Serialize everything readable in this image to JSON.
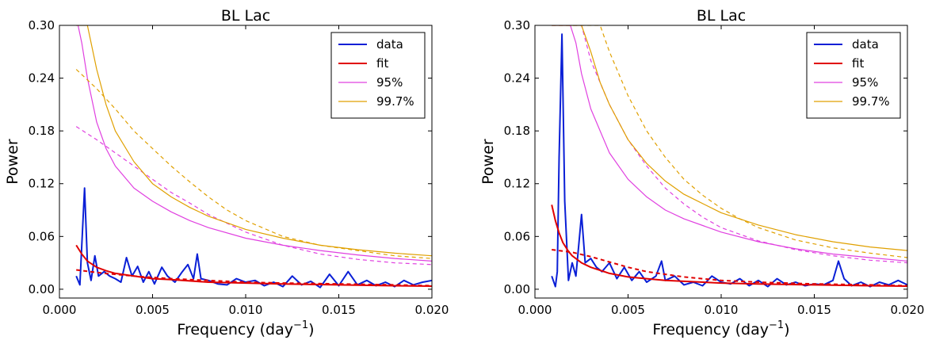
{
  "chart_data": [
    {
      "type": "line",
      "title": "BL Lac",
      "xlabel": "Frequency (day",
      "xlabel_sup": "−1",
      "xlabel_close": ")",
      "ylabel": "Power",
      "xlim": [
        0.0,
        0.02
      ],
      "ylim": [
        -0.01,
        0.3
      ],
      "xticks": [
        0.0,
        0.005,
        0.01,
        0.015,
        0.02
      ],
      "xtick_labels": [
        "0.000",
        "0.005",
        "0.010",
        "0.015",
        "0.020"
      ],
      "yticks": [
        0.0,
        0.06,
        0.12,
        0.18,
        0.24,
        0.3
      ],
      "ytick_labels": [
        "0.00",
        "0.06",
        "0.12",
        "0.18",
        "0.24",
        "0.30"
      ],
      "legend": {
        "position": "top-right",
        "entries": [
          {
            "label": "data",
            "color": "#0a1fd6"
          },
          {
            "label": "fit",
            "color": "#e00000"
          },
          {
            "label": "95%",
            "color": "#e040e0"
          },
          {
            "label": "99.7%",
            "color": "#e0a000"
          }
        ]
      },
      "series": [
        {
          "name": "data",
          "color": "#0a1fd6",
          "x": [
            0.0009,
            0.0011,
            0.0012,
            0.00135,
            0.0015,
            0.0017,
            0.0019,
            0.0021,
            0.0024,
            0.0027,
            0.003,
            0.0033,
            0.0036,
            0.0039,
            0.0042,
            0.0045,
            0.0048,
            0.0051,
            0.0055,
            0.0058,
            0.0062,
            0.0066,
            0.0069,
            0.0072,
            0.0074,
            0.0076,
            0.008,
            0.0085,
            0.009,
            0.0095,
            0.01,
            0.0105,
            0.011,
            0.0115,
            0.012,
            0.0125,
            0.013,
            0.0135,
            0.014,
            0.0145,
            0.015,
            0.0155,
            0.016,
            0.0165,
            0.017,
            0.0175,
            0.018,
            0.0185,
            0.019,
            0.0195,
            0.02
          ],
          "y": [
            0.015,
            0.005,
            0.05,
            0.115,
            0.03,
            0.01,
            0.038,
            0.015,
            0.02,
            0.015,
            0.012,
            0.008,
            0.036,
            0.015,
            0.026,
            0.008,
            0.02,
            0.006,
            0.025,
            0.015,
            0.008,
            0.02,
            0.028,
            0.012,
            0.04,
            0.012,
            0.01,
            0.006,
            0.005,
            0.012,
            0.008,
            0.01,
            0.004,
            0.008,
            0.003,
            0.015,
            0.005,
            0.009,
            0.002,
            0.017,
            0.004,
            0.02,
            0.005,
            0.01,
            0.004,
            0.008,
            0.003,
            0.01,
            0.005,
            0.008,
            0.01
          ]
        },
        {
          "name": "fit",
          "style": "solid",
          "color": "#e00000",
          "x": [
            0.0009,
            0.0012,
            0.0015,
            0.002,
            0.0025,
            0.003,
            0.004,
            0.005,
            0.006,
            0.008,
            0.01,
            0.012,
            0.015,
            0.018,
            0.02
          ],
          "y": [
            0.05,
            0.04,
            0.032,
            0.025,
            0.021,
            0.018,
            0.015,
            0.012,
            0.011,
            0.008,
            0.007,
            0.006,
            0.005,
            0.004,
            0.0035
          ]
        },
        {
          "name": "fit (dashed)",
          "style": "dashed",
          "color": "#e00000",
          "x": [
            0.0009,
            0.002,
            0.004,
            0.006,
            0.008,
            0.01,
            0.012,
            0.015,
            0.018,
            0.02
          ],
          "y": [
            0.022,
            0.019,
            0.015,
            0.012,
            0.01,
            0.008,
            0.007,
            0.006,
            0.005,
            0.004
          ]
        },
        {
          "name": "95%",
          "style": "solid",
          "color": "#e040e0",
          "x": [
            0.0009,
            0.001,
            0.0012,
            0.0015,
            0.002,
            0.0025,
            0.003,
            0.004,
            0.005,
            0.006,
            0.007,
            0.008,
            0.01,
            0.012,
            0.014,
            0.016,
            0.018,
            0.02
          ],
          "y": [
            0.3,
            0.3,
            0.28,
            0.24,
            0.19,
            0.16,
            0.14,
            0.115,
            0.1,
            0.088,
            0.078,
            0.07,
            0.058,
            0.05,
            0.044,
            0.039,
            0.035,
            0.032
          ]
        },
        {
          "name": "95% (dashed)",
          "style": "dashed",
          "color": "#e040e0",
          "x": [
            0.0009,
            0.002,
            0.003,
            0.004,
            0.005,
            0.006,
            0.007,
            0.008,
            0.009,
            0.01,
            0.012,
            0.014,
            0.016,
            0.018,
            0.02
          ],
          "y": [
            0.185,
            0.17,
            0.155,
            0.14,
            0.125,
            0.11,
            0.098,
            0.085,
            0.075,
            0.065,
            0.05,
            0.04,
            0.034,
            0.03,
            0.028
          ]
        },
        {
          "name": "99.7%",
          "style": "solid",
          "color": "#e0a000",
          "x": [
            0.0009,
            0.0015,
            0.002,
            0.0025,
            0.003,
            0.004,
            0.005,
            0.006,
            0.007,
            0.008,
            0.01,
            0.012,
            0.014,
            0.016,
            0.018,
            0.02
          ],
          "y": [
            0.3,
            0.3,
            0.25,
            0.21,
            0.18,
            0.145,
            0.12,
            0.105,
            0.093,
            0.083,
            0.068,
            0.058,
            0.05,
            0.045,
            0.041,
            0.038
          ]
        },
        {
          "name": "99.7% (dashed)",
          "style": "dashed",
          "color": "#e0a000",
          "x": [
            0.0009,
            0.002,
            0.003,
            0.004,
            0.005,
            0.006,
            0.007,
            0.008,
            0.009,
            0.01,
            0.012,
            0.014,
            0.016,
            0.018,
            0.02
          ],
          "y": [
            0.25,
            0.228,
            0.205,
            0.18,
            0.16,
            0.14,
            0.122,
            0.105,
            0.09,
            0.078,
            0.06,
            0.05,
            0.044,
            0.038,
            0.035
          ]
        }
      ]
    },
    {
      "type": "line",
      "title": "BL Lac",
      "xlabel": "Frequency (day",
      "xlabel_sup": "−1",
      "xlabel_close": ")",
      "ylabel": "Power",
      "xlim": [
        0.0,
        0.02
      ],
      "ylim": [
        -0.01,
        0.3
      ],
      "xticks": [
        0.0,
        0.005,
        0.01,
        0.015,
        0.02
      ],
      "xtick_labels": [
        "0.000",
        "0.005",
        "0.010",
        "0.015",
        "0.020"
      ],
      "yticks": [
        0.0,
        0.06,
        0.12,
        0.18,
        0.24,
        0.3
      ],
      "ytick_labels": [
        "0.00",
        "0.06",
        "0.12",
        "0.18",
        "0.24",
        "0.30"
      ],
      "legend": {
        "position": "top-right",
        "entries": [
          {
            "label": "data",
            "color": "#0a1fd6"
          },
          {
            "label": "fit",
            "color": "#e00000"
          },
          {
            "label": "95%",
            "color": "#e040e0"
          },
          {
            "label": "99.7%",
            "color": "#e0a000"
          }
        ]
      },
      "series": [
        {
          "name": "data",
          "color": "#0a1fd6",
          "x": [
            0.0009,
            0.0011,
            0.0012,
            0.0013,
            0.00145,
            0.0016,
            0.0018,
            0.002,
            0.0022,
            0.0025,
            0.0027,
            0.003,
            0.0033,
            0.0036,
            0.004,
            0.0044,
            0.0048,
            0.0052,
            0.0056,
            0.006,
            0.0065,
            0.0068,
            0.007,
            0.0075,
            0.008,
            0.0085,
            0.009,
            0.0095,
            0.01,
            0.0105,
            0.011,
            0.0115,
            0.012,
            0.0125,
            0.013,
            0.0135,
            0.014,
            0.0145,
            0.015,
            0.0155,
            0.016,
            0.0163,
            0.0166,
            0.017,
            0.0175,
            0.018,
            0.0185,
            0.019,
            0.0195,
            0.02
          ],
          "y": [
            0.015,
            0.003,
            0.02,
            0.15,
            0.29,
            0.1,
            0.01,
            0.03,
            0.015,
            0.085,
            0.03,
            0.035,
            0.025,
            0.02,
            0.03,
            0.012,
            0.025,
            0.01,
            0.02,
            0.008,
            0.015,
            0.032,
            0.01,
            0.015,
            0.005,
            0.008,
            0.004,
            0.015,
            0.008,
            0.006,
            0.012,
            0.004,
            0.01,
            0.003,
            0.012,
            0.005,
            0.008,
            0.004,
            0.006,
            0.005,
            0.01,
            0.032,
            0.012,
            0.004,
            0.008,
            0.003,
            0.008,
            0.005,
            0.01,
            0.005
          ]
        },
        {
          "name": "fit",
          "style": "solid",
          "color": "#e00000",
          "x": [
            0.0009,
            0.0011,
            0.0013,
            0.0015,
            0.0018,
            0.002,
            0.0025,
            0.003,
            0.004,
            0.005,
            0.006,
            0.007,
            0.008,
            0.01,
            0.012,
            0.015,
            0.018,
            0.02
          ],
          "y": [
            0.096,
            0.078,
            0.064,
            0.053,
            0.043,
            0.038,
            0.03,
            0.025,
            0.018,
            0.014,
            0.012,
            0.01,
            0.009,
            0.007,
            0.006,
            0.005,
            0.004,
            0.0035
          ]
        },
        {
          "name": "fit (dashed)",
          "style": "dashed",
          "color": "#e00000",
          "x": [
            0.0009,
            0.002,
            0.003,
            0.004,
            0.005,
            0.006,
            0.008,
            0.01,
            0.012,
            0.015,
            0.018,
            0.02
          ],
          "y": [
            0.045,
            0.042,
            0.037,
            0.031,
            0.025,
            0.02,
            0.014,
            0.01,
            0.008,
            0.006,
            0.005,
            0.004
          ]
        },
        {
          "name": "95%",
          "style": "solid",
          "color": "#e040e0",
          "x": [
            0.0009,
            0.0015,
            0.0019,
            0.0022,
            0.0025,
            0.003,
            0.004,
            0.005,
            0.006,
            0.007,
            0.008,
            0.01,
            0.012,
            0.014,
            0.016,
            0.018,
            0.02
          ],
          "y": [
            0.3,
            0.3,
            0.3,
            0.28,
            0.245,
            0.205,
            0.155,
            0.125,
            0.105,
            0.09,
            0.08,
            0.065,
            0.054,
            0.046,
            0.04,
            0.036,
            0.032
          ]
        },
        {
          "name": "95% (dashed)",
          "style": "dashed",
          "color": "#e040e0",
          "x": [
            0.0009,
            0.0025,
            0.003,
            0.004,
            0.005,
            0.006,
            0.007,
            0.008,
            0.009,
            0.01,
            0.012,
            0.014,
            0.016,
            0.018,
            0.02
          ],
          "y": [
            0.3,
            0.3,
            0.26,
            0.21,
            0.17,
            0.14,
            0.115,
            0.097,
            0.082,
            0.07,
            0.055,
            0.045,
            0.038,
            0.033,
            0.03
          ]
        },
        {
          "name": "99.7%",
          "style": "solid",
          "color": "#e0a000",
          "x": [
            0.0009,
            0.0025,
            0.003,
            0.0035,
            0.004,
            0.005,
            0.006,
            0.007,
            0.008,
            0.01,
            0.012,
            0.014,
            0.016,
            0.018,
            0.02
          ],
          "y": [
            0.3,
            0.3,
            0.27,
            0.235,
            0.21,
            0.17,
            0.143,
            0.123,
            0.108,
            0.087,
            0.073,
            0.062,
            0.054,
            0.048,
            0.044
          ]
        },
        {
          "name": "99.7% (dashed)",
          "style": "dashed",
          "color": "#e0a000",
          "x": [
            0.0009,
            0.0035,
            0.004,
            0.005,
            0.006,
            0.007,
            0.008,
            0.009,
            0.01,
            0.011,
            0.012,
            0.014,
            0.016,
            0.018,
            0.02
          ],
          "y": [
            0.3,
            0.3,
            0.27,
            0.22,
            0.18,
            0.15,
            0.125,
            0.107,
            0.092,
            0.08,
            0.07,
            0.056,
            0.047,
            0.041,
            0.036
          ]
        }
      ]
    }
  ]
}
